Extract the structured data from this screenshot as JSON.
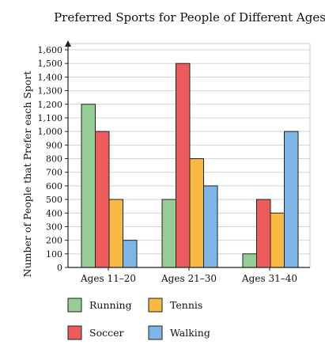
{
  "chart_data": {
    "type": "bar",
    "title": "Preferred Sports for People of Different Ages",
    "xlabel": "",
    "ylabel": "Number of People that Prefer each Sport",
    "categories": [
      "Ages 11–20",
      "Ages 21–30",
      "Ages 31–40"
    ],
    "series": [
      {
        "name": "Running",
        "color": "#96cd94",
        "values": [
          1200,
          500,
          100
        ]
      },
      {
        "name": "Soccer",
        "color": "#ec5c5c",
        "values": [
          1000,
          1500,
          500
        ]
      },
      {
        "name": "Tennis",
        "color": "#f7b944",
        "values": [
          500,
          800,
          400
        ]
      },
      {
        "name": "Walking",
        "color": "#7fb5e5",
        "values": [
          200,
          600,
          1000
        ]
      }
    ],
    "ylim": [
      0,
      1600
    ],
    "yticks": [
      0,
      100,
      200,
      300,
      400,
      500,
      600,
      700,
      800,
      900,
      1000,
      1100,
      1200,
      1300,
      1400,
      1500,
      1600
    ],
    "ytick_labels": [
      "0",
      "100",
      "200",
      "300",
      "400",
      "500",
      "600",
      "700",
      "800",
      "900",
      "1,000",
      "1,100",
      "1,200",
      "1,300",
      "1,400",
      "1,500",
      "1,600"
    ],
    "grid": true,
    "legend_position": "bottom"
  }
}
